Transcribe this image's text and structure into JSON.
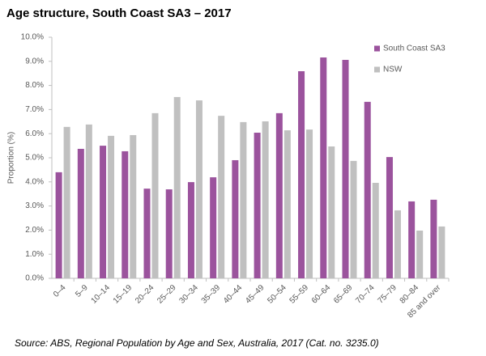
{
  "chart_data": {
    "type": "bar",
    "title": "Age structure, South Coast SA3 – 2017",
    "y_label": "Proportion (%)",
    "source": "Source:  ABS, Regional Population by Age and Sex, Australia, 2017 (Cat. no. 3235.0)",
    "categories": [
      "0–4",
      "5–9",
      "10–14",
      "15–19",
      "20–24",
      "25–29",
      "30–34",
      "35–39",
      "40–44",
      "45–49",
      "50–54",
      "55–59",
      "60–64",
      "65–69",
      "70–74",
      "75–79",
      "80–84",
      "85 and over"
    ],
    "series": [
      {
        "name": "South Coast SA3",
        "color": "#9b539d",
        "values": [
          4.4,
          5.37,
          5.5,
          5.27,
          3.72,
          3.69,
          3.99,
          4.19,
          4.9,
          6.04,
          6.85,
          8.59,
          9.16,
          9.06,
          7.32,
          5.03,
          3.19,
          3.26
        ]
      },
      {
        "name": "NSW",
        "color": "#c0c0c0",
        "values": [
          6.28,
          6.38,
          5.91,
          5.94,
          6.85,
          7.52,
          7.38,
          6.74,
          6.48,
          6.51,
          6.14,
          6.17,
          5.47,
          4.87,
          3.96,
          2.82,
          1.98,
          2.15
        ]
      }
    ],
    "ylim": [
      0,
      10
    ],
    "yticks": [
      {
        "value": 0,
        "label": "0.0%"
      },
      {
        "value": 1,
        "label": "1.0%"
      },
      {
        "value": 2,
        "label": "2.0%"
      },
      {
        "value": 3,
        "label": "3.0%"
      },
      {
        "value": 4,
        "label": "4.0%"
      },
      {
        "value": 5,
        "label": "5.0%"
      },
      {
        "value": 6,
        "label": "6.0%"
      },
      {
        "value": 7,
        "label": "7.0%"
      },
      {
        "value": 8,
        "label": "8.0%"
      },
      {
        "value": 9,
        "label": "9.0%"
      },
      {
        "value": 10,
        "label": "10.0%"
      }
    ],
    "legend": "top-right"
  }
}
